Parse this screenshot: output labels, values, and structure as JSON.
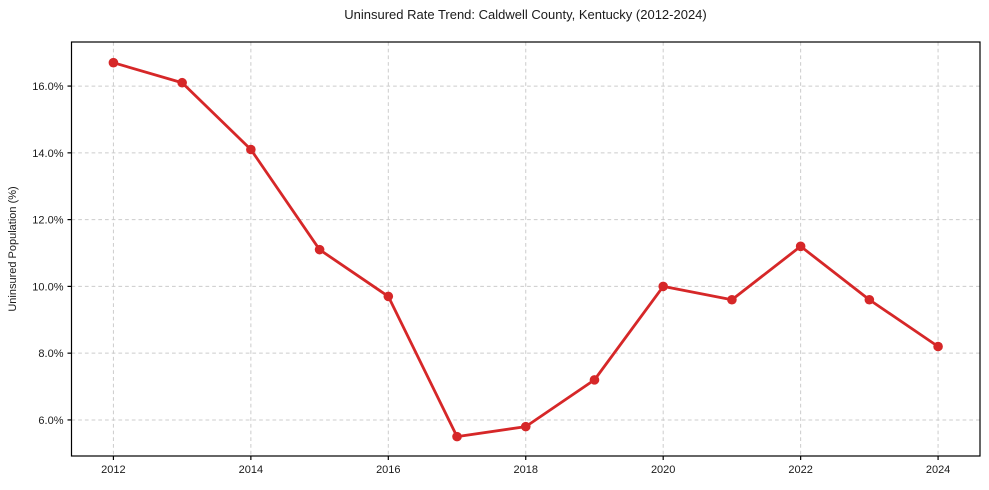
{
  "chart_data": {
    "type": "line",
    "title": "Uninsured Rate Trend: Caldwell County, Kentucky (2012-2024)",
    "xlabel": "",
    "ylabel": "Uninsured Population (%)",
    "x": [
      2012,
      2013,
      2014,
      2015,
      2016,
      2017,
      2018,
      2019,
      2020,
      2021,
      2022,
      2023,
      2024
    ],
    "values": [
      16.7,
      16.1,
      14.1,
      11.1,
      9.7,
      5.5,
      5.8,
      7.2,
      10.0,
      9.6,
      11.2,
      9.6,
      8.2
    ],
    "xlim": [
      2011.39,
      2024.61
    ],
    "ylim": [
      4.92,
      17.32
    ],
    "xticks": [
      2012,
      2014,
      2016,
      2018,
      2020,
      2022,
      2024
    ],
    "xtick_labels": [
      "2012",
      "2014",
      "2016",
      "2018",
      "2020",
      "2022",
      "2024"
    ],
    "yticks": [
      6,
      8,
      10,
      12,
      14,
      16
    ],
    "ytick_labels": [
      "6.0%",
      "8.0%",
      "10.0%",
      "12.0%",
      "14.0%",
      "16.0%"
    ],
    "grid": true,
    "grid_style": "dashed",
    "legend_position": "none",
    "marker": "circle",
    "colors": {
      "line": "#d62728",
      "marker": "#d62728",
      "grid": "#cccccc",
      "axis": "#000000",
      "text": "#1a1a1a",
      "background": "#ffffff"
    }
  }
}
